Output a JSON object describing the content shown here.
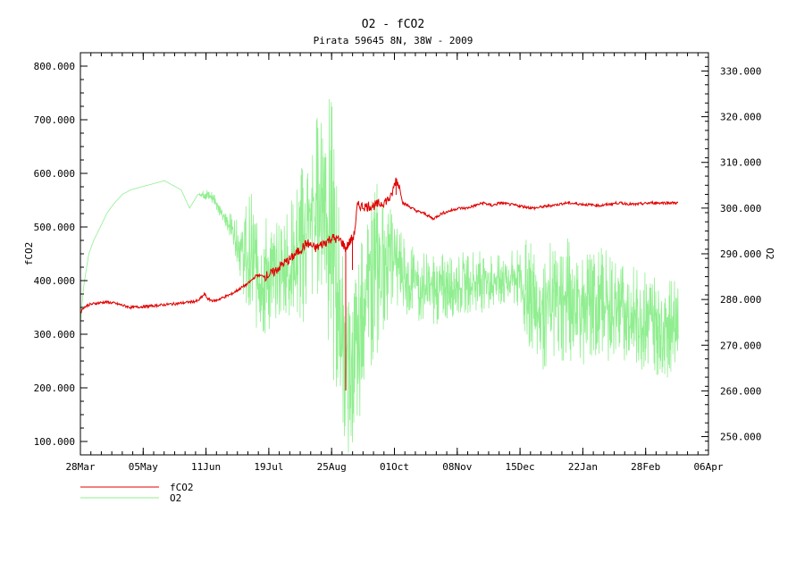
{
  "chart_data": {
    "type": "line",
    "title": "O2 - fCO2",
    "subtitle": "Pirata 59645 8N, 38W - 2009",
    "xlabel": "",
    "ylabel_left": "fCO2",
    "ylabel_right": "O2",
    "x_ticks": [
      "28Mar",
      "05May",
      "11Jun",
      "19Jul",
      "25Aug",
      "01Oct",
      "08Nov",
      "15Dec",
      "22Jan",
      "28Feb",
      "06Apr"
    ],
    "xlim_days": [
      0,
      374
    ],
    "ylim_left": [
      75,
      825
    ],
    "ylim_right": [
      246,
      334
    ],
    "y_ticks_left": [
      "100.000",
      "200.000",
      "300.000",
      "400.000",
      "500.000",
      "600.000",
      "700.000",
      "800.000"
    ],
    "y_ticks_right": [
      "250.000",
      "260.000",
      "270.000",
      "280.000",
      "290.000",
      "300.000",
      "310.000",
      "320.000",
      "330.000"
    ],
    "colors": {
      "fco2": "#e00000",
      "o2": "#90ee90"
    },
    "legend": {
      "placement": "bottom-left",
      "entries": [
        "fCO2",
        "O2"
      ]
    },
    "series": [
      {
        "name": "fCO2",
        "axis": "left",
        "x_days": [
          0,
          2,
          5,
          10,
          15,
          20,
          30,
          40,
          50,
          60,
          70,
          74,
          76,
          80,
          90,
          100,
          105,
          110,
          115,
          120,
          125,
          130,
          135,
          140,
          145,
          150,
          155,
          158,
          160,
          163,
          165,
          170,
          175,
          180,
          185,
          188,
          190,
          192,
          195,
          200,
          205,
          210,
          215,
          220,
          225,
          230,
          235,
          240,
          245,
          250,
          260,
          270,
          280,
          290,
          300,
          310,
          320,
          330,
          340,
          350,
          356
        ],
        "values": [
          340,
          350,
          355,
          358,
          360,
          358,
          350,
          352,
          355,
          358,
          362,
          375,
          365,
          362,
          375,
          395,
          410,
          408,
          415,
          430,
          440,
          455,
          470,
          460,
          470,
          480,
          475,
          460,
          470,
          485,
          540,
          538,
          540,
          545,
          555,
          590,
          575,
          545,
          540,
          530,
          525,
          515,
          525,
          530,
          535,
          535,
          540,
          545,
          540,
          545,
          540,
          535,
          540,
          545,
          542,
          540,
          545,
          542,
          545,
          545,
          545
        ],
        "spikes": [
          [
            158,
            460,
            195
          ],
          [
            162,
            480,
            420
          ],
          [
            188,
            590,
            560
          ]
        ]
      },
      {
        "name": "O2",
        "axis": "right",
        "x_days": [
          0,
          2,
          5,
          8,
          12,
          16,
          20,
          25,
          30,
          40,
          50,
          55,
          60,
          65,
          70,
          75,
          80,
          85,
          90,
          95,
          100,
          105,
          110,
          115,
          120,
          125,
          130,
          135,
          140,
          145,
          150,
          155,
          158,
          160,
          165,
          168,
          172,
          175,
          180,
          185,
          190,
          195,
          200,
          210,
          220,
          230,
          240,
          250,
          260,
          265,
          270,
          275,
          280,
          290,
          300,
          310,
          320,
          330,
          340,
          350,
          356
        ],
        "values": [
          275,
          283,
          290,
          293,
          296,
          299,
          301,
          303,
          304,
          305,
          306,
          305,
          304,
          300,
          303,
          303,
          302,
          298,
          296,
          291,
          288,
          287,
          285,
          285,
          287,
          288,
          290,
          295,
          300,
          305,
          292,
          275,
          265,
          262,
          268,
          278,
          283,
          285,
          288,
          290,
          287,
          285,
          283,
          282,
          283,
          284,
          284,
          284,
          285,
          282,
          280,
          278,
          279,
          280,
          278,
          279,
          278,
          276,
          275,
          274,
          276
        ],
        "band": [
          0,
          0,
          0,
          0,
          0,
          0,
          0,
          0,
          0,
          0,
          0,
          0,
          0,
          0,
          0,
          1,
          1,
          1,
          2,
          4,
          12,
          10,
          10,
          8,
          8,
          10,
          12,
          14,
          14,
          18,
          22,
          16,
          12,
          14,
          14,
          12,
          12,
          16,
          12,
          8,
          8,
          6,
          6,
          6,
          5,
          5,
          5,
          4,
          5,
          8,
          10,
          10,
          10,
          10,
          9,
          9,
          8,
          8,
          8,
          8,
          8
        ]
      }
    ]
  }
}
